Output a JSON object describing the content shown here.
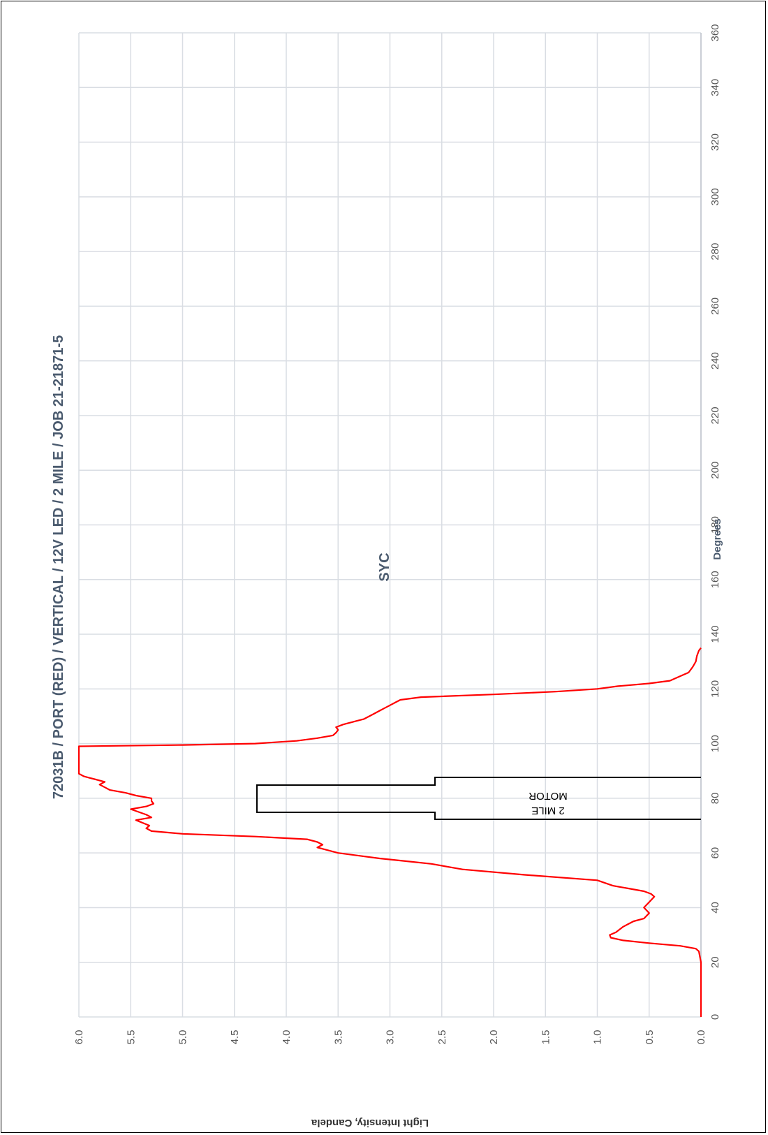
{
  "chart_data": {
    "type": "line",
    "title": "SYC",
    "subtitle": "72031B / PORT (RED) / VERTICAL / 12V LED / 2 MILE / JOB 21-21871-5",
    "xlabel": "Degrees",
    "ylabel": "Light Intensity, Candela",
    "xlim": [
      0,
      360
    ],
    "ylim": [
      0,
      6.0
    ],
    "x_ticks": [
      "0",
      "20",
      "40",
      "60",
      "80",
      "100",
      "120",
      "140",
      "160",
      "180",
      "200",
      "220",
      "240",
      "260",
      "280",
      "300",
      "320",
      "340",
      "360"
    ],
    "y_ticks": [
      "0.0",
      "0.5",
      "1.0",
      "1.5",
      "2.0",
      "2.5",
      "3.0",
      "3.5",
      "4.0",
      "4.5",
      "5.0",
      "5.5",
      "6.0"
    ],
    "grid": true,
    "orientation": "rotated 90 degrees clockwise",
    "series_color": "#ff0000",
    "annotation": {
      "lines": [
        "2 MILE",
        "MOTOR"
      ]
    },
    "series": [
      {
        "name": "",
        "x": [
          0,
          20,
          24,
          25,
          26,
          27,
          28,
          29,
          30,
          31,
          33,
          34,
          35,
          36,
          38,
          40,
          42,
          44,
          45,
          46,
          47,
          48,
          50,
          52,
          54,
          56,
          57,
          58,
          60,
          62,
          63,
          64,
          65,
          66,
          67,
          68,
          69,
          70,
          72,
          73,
          74,
          76,
          77,
          78,
          79,
          80,
          81,
          82,
          83,
          84,
          85,
          86,
          87,
          88,
          89,
          99,
          99.5,
          100,
          101,
          102,
          103,
          104,
          105,
          106,
          107,
          108,
          109,
          110,
          111,
          112,
          113,
          114,
          115,
          116,
          117,
          118,
          119,
          120,
          121,
          122,
          123,
          125,
          126,
          128,
          130,
          132,
          134,
          135
        ],
        "y": [
          0,
          0,
          0.02,
          0.05,
          0.2,
          0.5,
          0.75,
          0.87,
          0.88,
          0.82,
          0.75,
          0.7,
          0.65,
          0.55,
          0.5,
          0.55,
          0.5,
          0.45,
          0.48,
          0.55,
          0.7,
          0.85,
          1.0,
          1.7,
          2.3,
          2.6,
          2.85,
          3.1,
          3.5,
          3.7,
          3.65,
          3.7,
          3.8,
          4.3,
          5.0,
          5.3,
          5.35,
          5.32,
          5.45,
          5.3,
          5.35,
          5.5,
          5.35,
          5.28,
          5.3,
          5.3,
          5.45,
          5.55,
          5.7,
          5.75,
          5.8,
          5.75,
          5.85,
          5.95,
          6.0,
          6.0,
          5.0,
          4.3,
          3.9,
          3.7,
          3.55,
          3.52,
          3.5,
          3.52,
          3.45,
          3.35,
          3.25,
          3.2,
          3.15,
          3.1,
          3.05,
          3.0,
          2.95,
          2.9,
          2.7,
          2.0,
          1.4,
          1.0,
          0.8,
          0.5,
          0.3,
          0.18,
          0.12,
          0.08,
          0.05,
          0.04,
          0.02,
          0
        ]
      }
    ]
  }
}
